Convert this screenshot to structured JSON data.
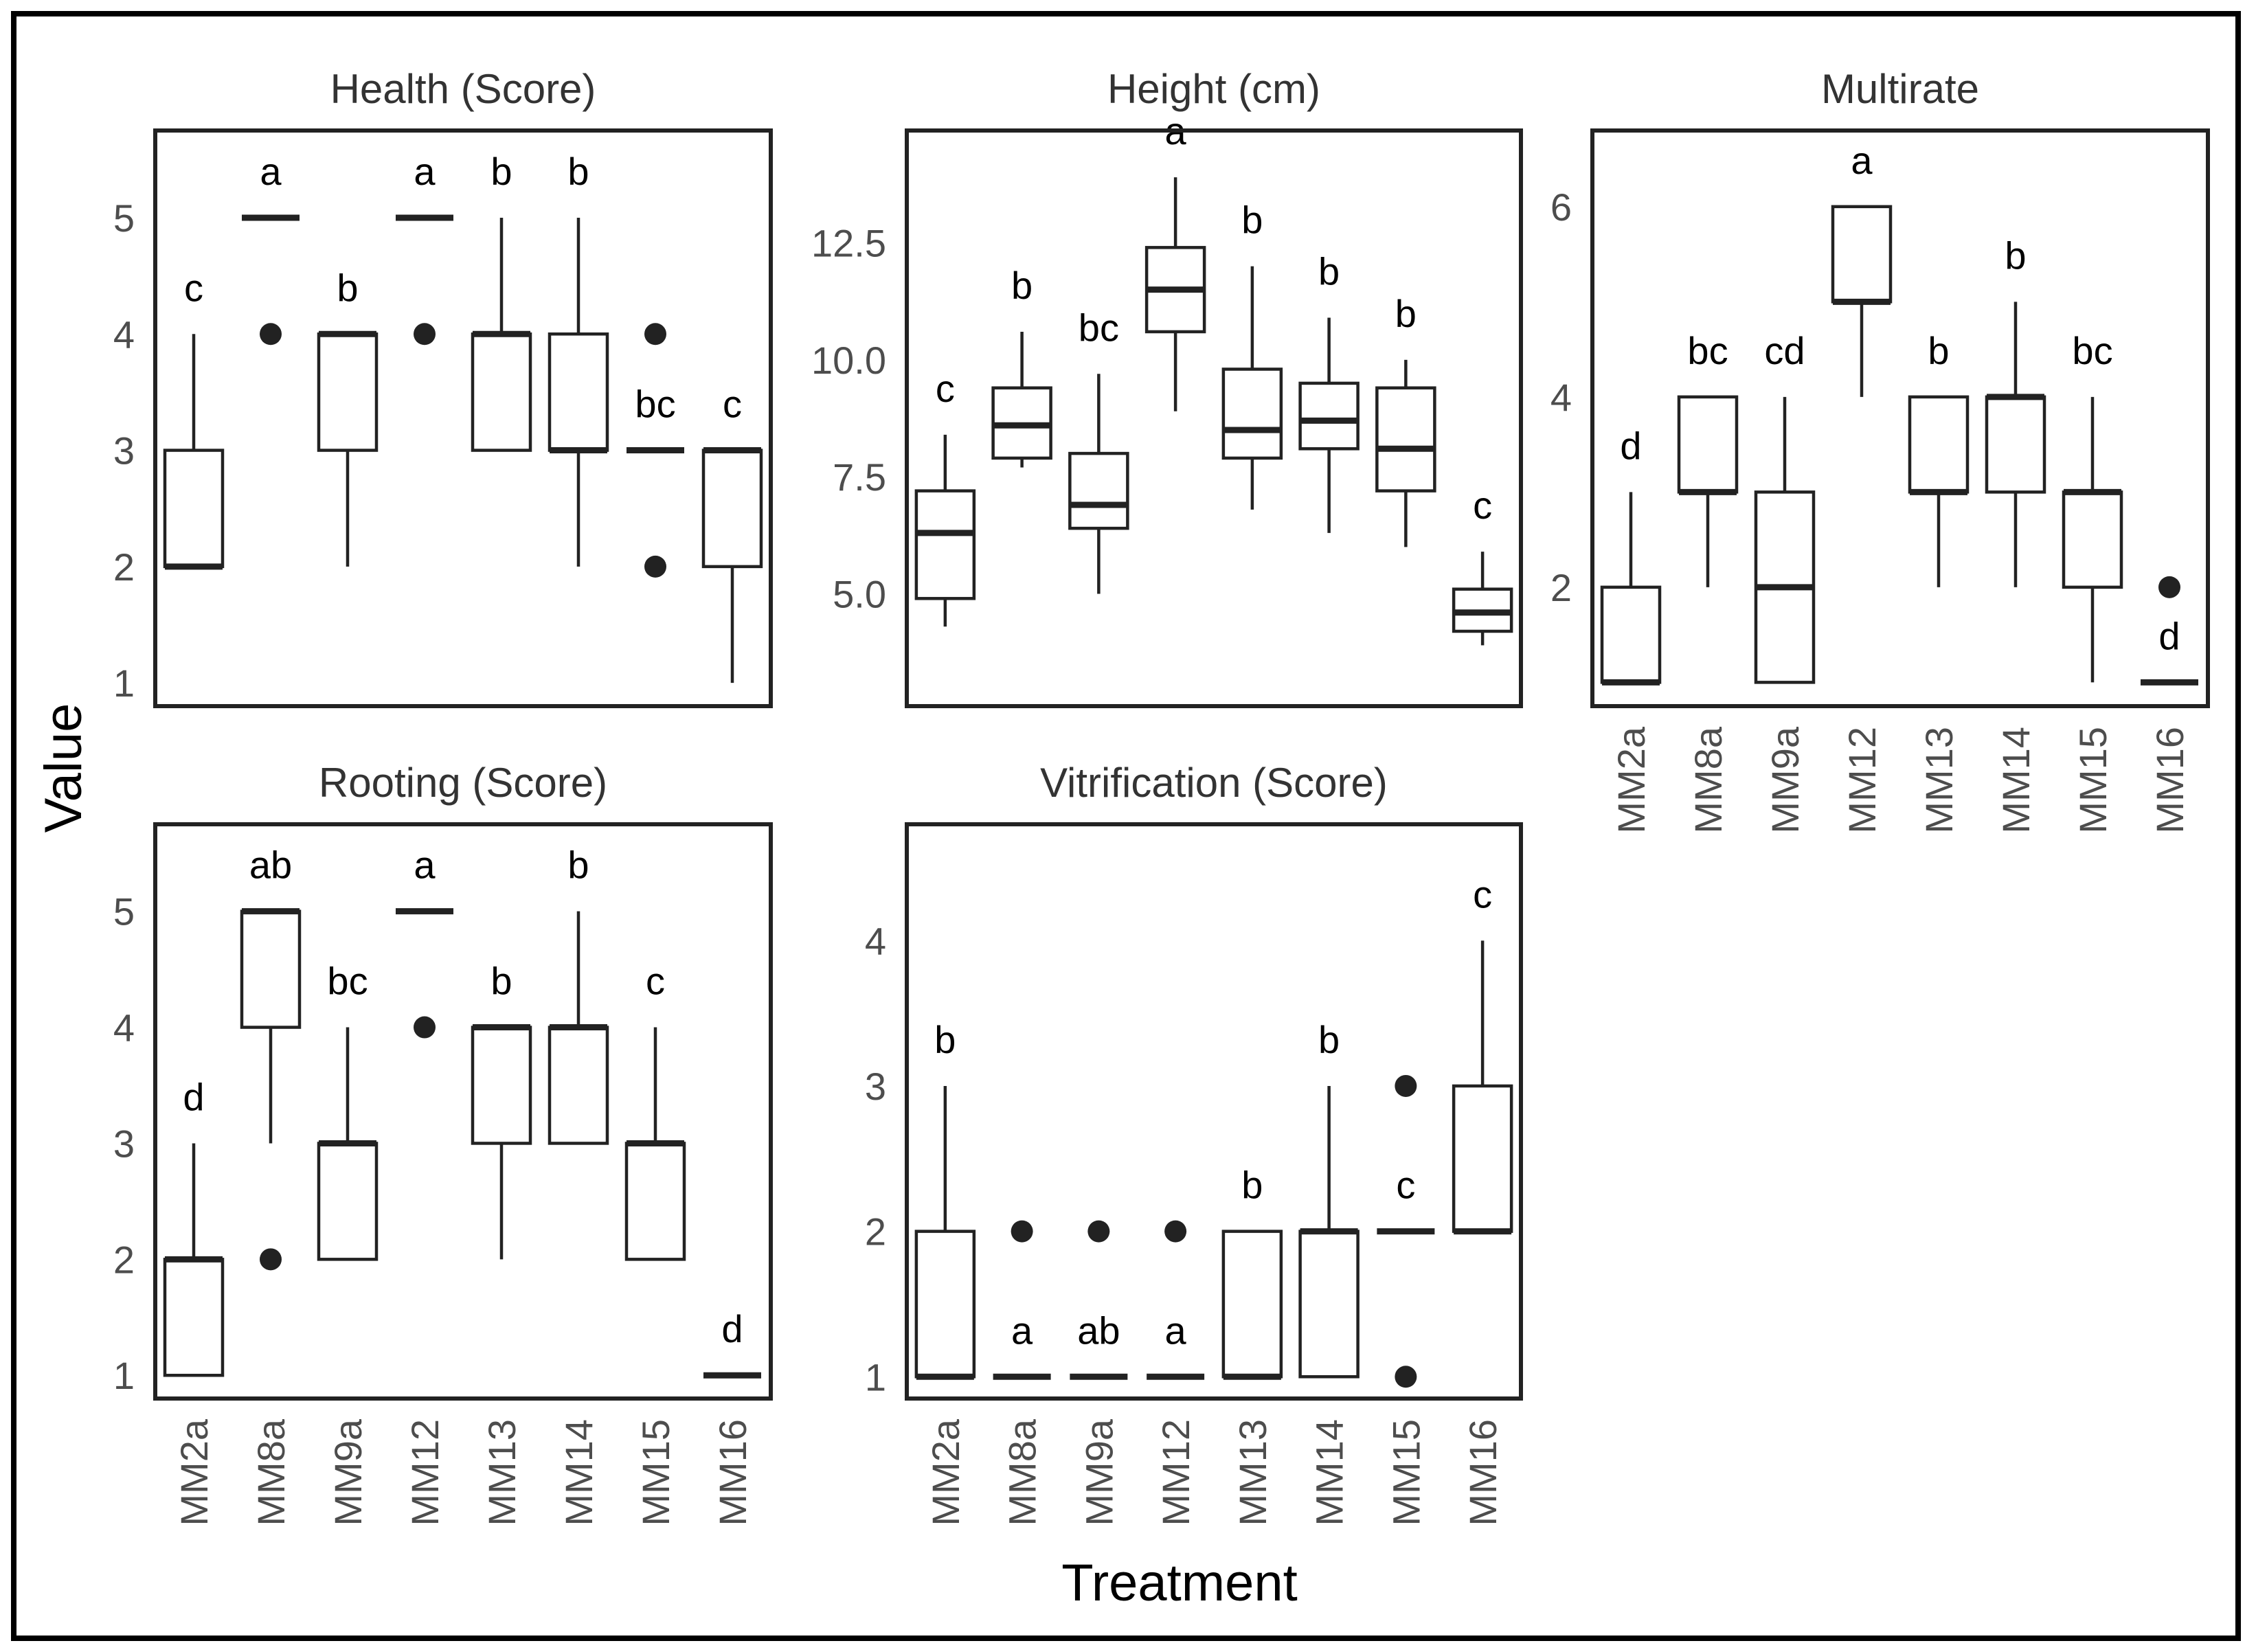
{
  "axis_titles": {
    "x": "Treatment",
    "y": "Value"
  },
  "chart_data": [
    {
      "type": "box",
      "title": "Health (Score)",
      "categories": [
        "MM2a",
        "MM8a",
        "MM9a",
        "MM12",
        "MM13",
        "MM14",
        "MM15",
        "MM16"
      ],
      "yticks": [
        "1",
        "2",
        "3",
        "4",
        "5"
      ],
      "ylim": [
        0.8,
        5.75
      ],
      "boxes": [
        {
          "min": 2,
          "q1": 2,
          "median": 2,
          "q3": 3,
          "max": 4,
          "outliers": [],
          "sig": "c"
        },
        {
          "min": 5,
          "q1": 5,
          "median": 5,
          "q3": 5,
          "max": 5,
          "outliers": [
            4
          ],
          "sig": "a"
        },
        {
          "min": 2,
          "q1": 3,
          "median": 4,
          "q3": 4,
          "max": 4,
          "outliers": [],
          "sig": "b"
        },
        {
          "min": 5,
          "q1": 5,
          "median": 5,
          "q3": 5,
          "max": 5,
          "outliers": [
            4
          ],
          "sig": "a"
        },
        {
          "min": 3,
          "q1": 3,
          "median": 4,
          "q3": 4,
          "max": 5,
          "outliers": [],
          "sig": "b"
        },
        {
          "min": 2,
          "q1": 3,
          "median": 3,
          "q3": 4,
          "max": 5,
          "outliers": [],
          "sig": "b"
        },
        {
          "min": 3,
          "q1": 3,
          "median": 3,
          "q3": 3,
          "max": 3,
          "outliers": [
            2,
            4
          ],
          "sig": "bc"
        },
        {
          "min": 1,
          "q1": 2,
          "median": 3,
          "q3": 3,
          "max": 3,
          "outliers": [],
          "sig": "c"
        }
      ]
    },
    {
      "type": "box",
      "title": "Height (cm)",
      "categories": [
        "MM2a",
        "MM8a",
        "MM9a",
        "MM12",
        "MM13",
        "MM14",
        "MM15",
        "MM16"
      ],
      "yticks": [
        "5.0",
        "7.5",
        "10.0",
        "12.5"
      ],
      "ylim": [
        2.6,
        14.9
      ],
      "boxes": [
        {
          "min": 4.3,
          "q1": 4.9,
          "median": 6.3,
          "q3": 7.2,
          "max": 8.4,
          "outliers": [],
          "sig": "c"
        },
        {
          "min": 7.7,
          "q1": 7.9,
          "median": 8.6,
          "q3": 9.4,
          "max": 10.6,
          "outliers": [],
          "sig": "b"
        },
        {
          "min": 5.0,
          "q1": 6.4,
          "median": 6.9,
          "q3": 8.0,
          "max": 9.7,
          "outliers": [],
          "sig": "bc"
        },
        {
          "min": 8.9,
          "q1": 10.6,
          "median": 11.5,
          "q3": 12.4,
          "max": 13.9,
          "outliers": [],
          "sig": "a"
        },
        {
          "min": 6.8,
          "q1": 7.9,
          "median": 8.5,
          "q3": 9.8,
          "max": 12.0,
          "outliers": [],
          "sig": "b"
        },
        {
          "min": 6.3,
          "q1": 8.1,
          "median": 8.7,
          "q3": 9.5,
          "max": 10.9,
          "outliers": [],
          "sig": "b"
        },
        {
          "min": 6.0,
          "q1": 7.2,
          "median": 8.1,
          "q3": 9.4,
          "max": 10.0,
          "outliers": [],
          "sig": "b"
        },
        {
          "min": 3.9,
          "q1": 4.2,
          "median": 4.6,
          "q3": 5.1,
          "max": 5.9,
          "outliers": [],
          "sig": "c"
        }
      ]
    },
    {
      "type": "box",
      "title": "Multirate",
      "categories": [
        "MM2a",
        "MM8a",
        "MM9a",
        "MM12",
        "MM13",
        "MM14",
        "MM15",
        "MM16"
      ],
      "yticks": [
        "2",
        "4",
        "6"
      ],
      "ylim": [
        0.75,
        6.8
      ],
      "boxes": [
        {
          "min": 1,
          "q1": 1,
          "median": 1,
          "q3": 2,
          "max": 3,
          "outliers": [],
          "sig": "d"
        },
        {
          "min": 2,
          "q1": 3,
          "median": 3,
          "q3": 4,
          "max": 4,
          "outliers": [],
          "sig": "bc"
        },
        {
          "min": 1,
          "q1": 1,
          "median": 2,
          "q3": 3,
          "max": 4,
          "outliers": [],
          "sig": "cd"
        },
        {
          "min": 4,
          "q1": 5,
          "median": 5,
          "q3": 6,
          "max": 6,
          "outliers": [],
          "sig": "a"
        },
        {
          "min": 2,
          "q1": 3,
          "median": 3,
          "q3": 4,
          "max": 4,
          "outliers": [],
          "sig": "b"
        },
        {
          "min": 2,
          "q1": 3,
          "median": 4,
          "q3": 4,
          "max": 5,
          "outliers": [],
          "sig": "b"
        },
        {
          "min": 1,
          "q1": 2,
          "median": 3,
          "q3": 3,
          "max": 4,
          "outliers": [],
          "sig": "bc"
        },
        {
          "min": 1,
          "q1": 1,
          "median": 1,
          "q3": 1,
          "max": 1,
          "outliers": [
            2
          ],
          "sig": "d"
        }
      ]
    },
    {
      "type": "box",
      "title": "Rooting (Score)",
      "categories": [
        "MM2a",
        "MM8a",
        "MM9a",
        "MM12",
        "MM13",
        "MM14",
        "MM15",
        "MM16"
      ],
      "yticks": [
        "1",
        "2",
        "3",
        "4",
        "5"
      ],
      "ylim": [
        0.8,
        5.75
      ],
      "boxes": [
        {
          "min": 1,
          "q1": 1,
          "median": 2,
          "q3": 2,
          "max": 3,
          "outliers": [],
          "sig": "d"
        },
        {
          "min": 3,
          "q1": 4,
          "median": 5,
          "q3": 5,
          "max": 5,
          "outliers": [
            2
          ],
          "sig": "ab"
        },
        {
          "min": 2,
          "q1": 2,
          "median": 3,
          "q3": 3,
          "max": 4,
          "outliers": [],
          "sig": "bc"
        },
        {
          "min": 5,
          "q1": 5,
          "median": 5,
          "q3": 5,
          "max": 5,
          "outliers": [
            4
          ],
          "sig": "a"
        },
        {
          "min": 2,
          "q1": 3,
          "median": 4,
          "q3": 4,
          "max": 4,
          "outliers": [],
          "sig": "b"
        },
        {
          "min": 3,
          "q1": 3,
          "median": 4,
          "q3": 4,
          "max": 5,
          "outliers": [],
          "sig": "b"
        },
        {
          "min": 2,
          "q1": 2,
          "median": 3,
          "q3": 3,
          "max": 4,
          "outliers": [],
          "sig": "c"
        },
        {
          "min": 1,
          "q1": 1,
          "median": 1,
          "q3": 1,
          "max": 1,
          "outliers": [],
          "sig": "d"
        }
      ]
    },
    {
      "type": "box",
      "title": "Vitrification (Score)",
      "categories": [
        "MM2a",
        "MM8a",
        "MM9a",
        "MM12",
        "MM13",
        "MM14",
        "MM15",
        "MM16"
      ],
      "yticks": [
        "1",
        "2",
        "3",
        "4"
      ],
      "ylim": [
        0.85,
        4.8
      ],
      "boxes": [
        {
          "min": 1,
          "q1": 1,
          "median": 1,
          "q3": 2,
          "max": 3,
          "outliers": [],
          "sig": "b"
        },
        {
          "min": 1,
          "q1": 1,
          "median": 1,
          "q3": 1,
          "max": 1,
          "outliers": [
            2
          ],
          "sig": "a"
        },
        {
          "min": 1,
          "q1": 1,
          "median": 1,
          "q3": 1,
          "max": 1,
          "outliers": [
            2
          ],
          "sig": "ab"
        },
        {
          "min": 1,
          "q1": 1,
          "median": 1,
          "q3": 1,
          "max": 1,
          "outliers": [
            2
          ],
          "sig": "a"
        },
        {
          "min": 1,
          "q1": 1,
          "median": 1,
          "q3": 2,
          "max": 2,
          "outliers": [],
          "sig": "b"
        },
        {
          "min": 1,
          "q1": 1,
          "median": 2,
          "q3": 2,
          "max": 3,
          "outliers": [],
          "sig": "b"
        },
        {
          "min": 2,
          "q1": 2,
          "median": 2,
          "q3": 2,
          "max": 2,
          "outliers": [
            1,
            3
          ],
          "sig": "c"
        },
        {
          "min": 2,
          "q1": 2,
          "median": 2,
          "q3": 3,
          "max": 4,
          "outliers": [],
          "sig": "c"
        }
      ]
    }
  ]
}
